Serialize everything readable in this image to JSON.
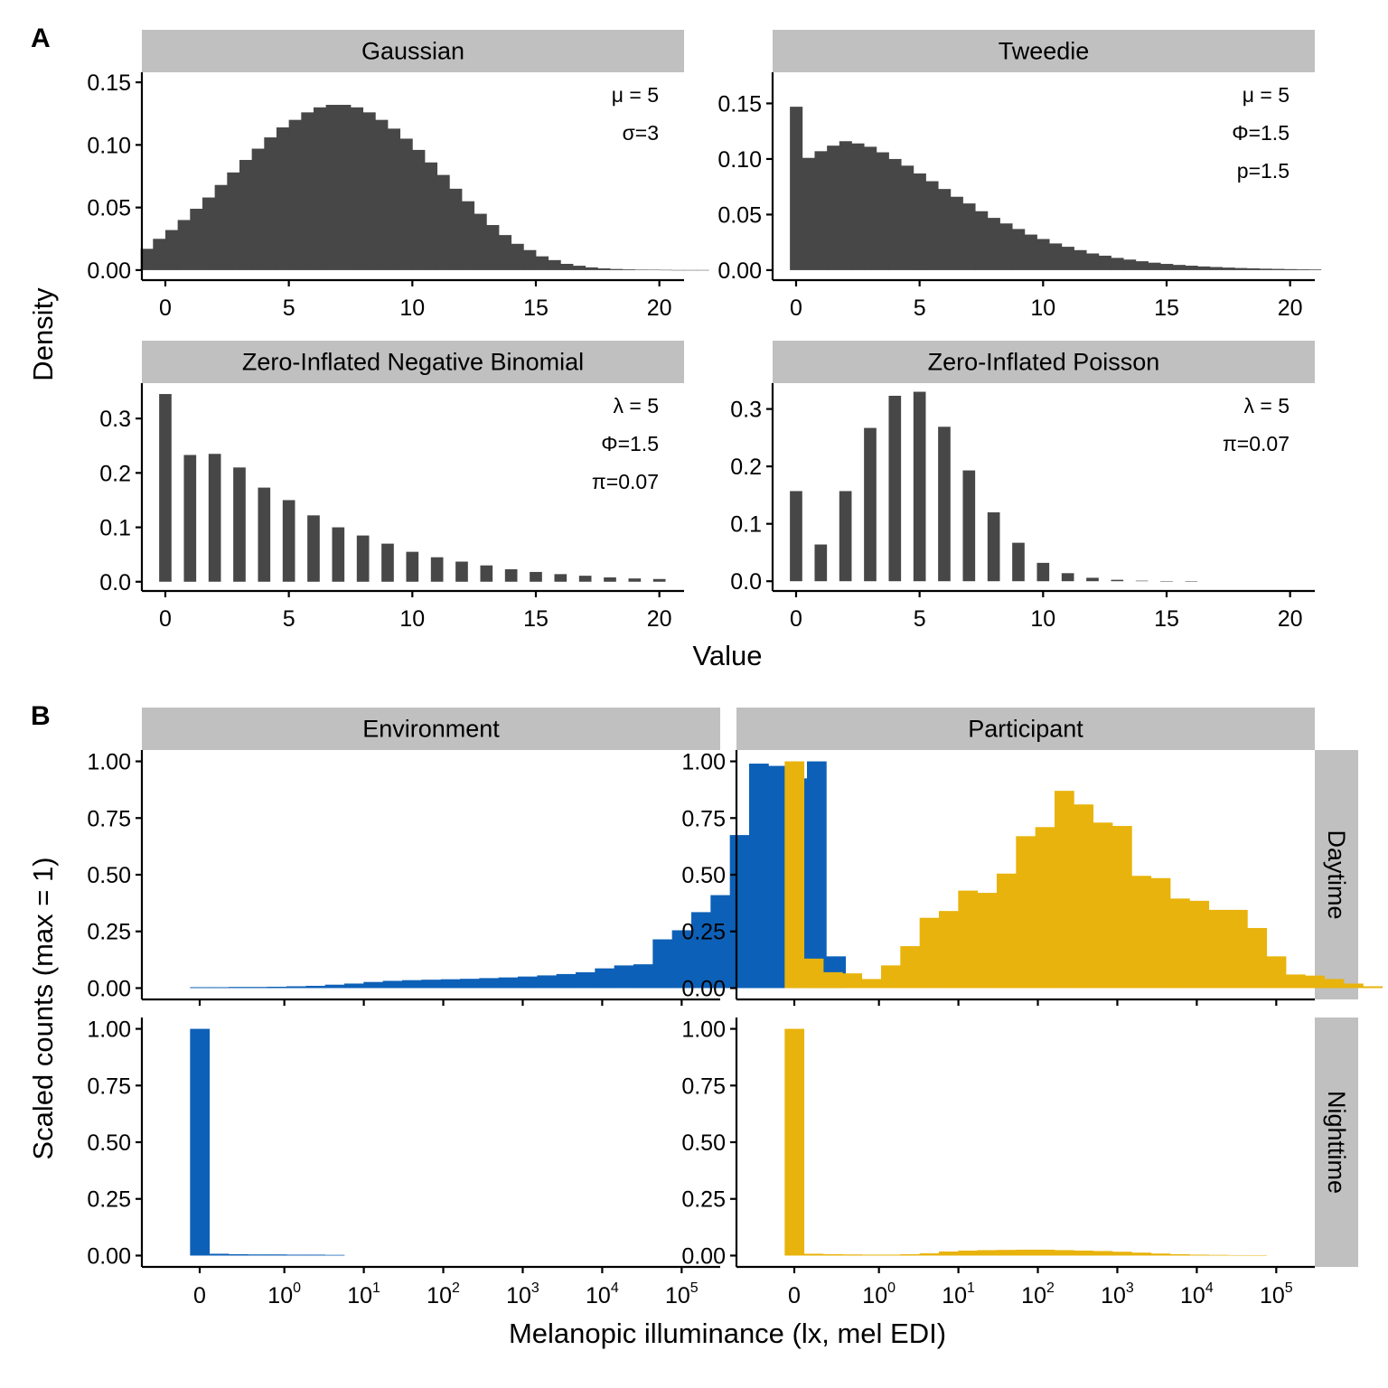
{
  "figure": {
    "panel_labels": [
      "A",
      "B"
    ]
  },
  "colors": {
    "strip_bg": "#c0c0c0",
    "bar_dark": "#474747",
    "environment": "#0d60b7",
    "participant": "#e8b30c"
  },
  "chart_data": [
    {
      "type": "bar",
      "panel": "A",
      "facet": "Gaussian",
      "annotations": [
        "μ = 5",
        "σ=3"
      ],
      "xlim": [
        -0.95,
        21
      ],
      "ylim": [
        -0.008,
        0.158
      ],
      "xticks": [
        0,
        5,
        10,
        15,
        20
      ],
      "yticks": [
        0,
        0.05,
        0.1,
        0.15
      ],
      "ytick_labels": [
        "0.00",
        "0.05",
        "0.10",
        "0.15"
      ],
      "bin_start": -1,
      "bin_width": 0.5,
      "values": [
        0.017,
        0.025,
        0.032,
        0.04,
        0.049,
        0.058,
        0.068,
        0.078,
        0.088,
        0.097,
        0.106,
        0.114,
        0.12,
        0.126,
        0.13,
        0.132,
        0.132,
        0.13,
        0.126,
        0.12,
        0.113,
        0.105,
        0.096,
        0.086,
        0.076,
        0.065,
        0.055,
        0.045,
        0.036,
        0.028,
        0.021,
        0.016,
        0.011,
        0.008,
        0.005,
        0.0035,
        0.0022,
        0.0014,
        0.0009,
        0.0006,
        0.0004,
        0.0003,
        0.0002,
        0.0001,
        0.0001,
        0.0001
      ]
    },
    {
      "type": "bar",
      "panel": "A",
      "facet": "Tweedie",
      "annotations": [
        "μ = 5",
        "Φ=1.5",
        "p=1.5"
      ],
      "xlim": [
        -0.95,
        21
      ],
      "ylim": [
        -0.009,
        0.178
      ],
      "xticks": [
        0,
        5,
        10,
        15,
        20
      ],
      "yticks": [
        0,
        0.05,
        0.1,
        0.15
      ],
      "ytick_labels": [
        "0.00",
        "0.05",
        "0.10",
        "0.15"
      ],
      "bin_start": -0.25,
      "bin_width": 0.5,
      "values": [
        0.147,
        0.101,
        0.107,
        0.112,
        0.116,
        0.114,
        0.111,
        0.106,
        0.1,
        0.094,
        0.087,
        0.08,
        0.073,
        0.066,
        0.06,
        0.053,
        0.047,
        0.042,
        0.037,
        0.032,
        0.028,
        0.024,
        0.021,
        0.018,
        0.015,
        0.013,
        0.011,
        0.0095,
        0.008,
        0.0067,
        0.0056,
        0.0047,
        0.004,
        0.0033,
        0.0028,
        0.0023,
        0.0019,
        0.0016,
        0.0013,
        0.0011,
        0.0009,
        0.0007,
        0.0006
      ]
    },
    {
      "type": "bar",
      "panel": "A",
      "facet": "Zero-Inflated Negative Binomial",
      "annotations": [
        "λ = 5",
        "Φ=1.5",
        "π=0.07"
      ],
      "xlim": [
        -0.95,
        21
      ],
      "ylim": [
        -0.017,
        0.365
      ],
      "xticks": [
        0,
        5,
        10,
        15,
        20
      ],
      "yticks": [
        0,
        0.1,
        0.2,
        0.3
      ],
      "ytick_labels": [
        "0.0",
        "0.1",
        "0.2",
        "0.3"
      ],
      "x": [
        0,
        1,
        2,
        3,
        4,
        5,
        6,
        7,
        8,
        9,
        10,
        11,
        12,
        13,
        14,
        15,
        16,
        17,
        18,
        19,
        20
      ],
      "bar_width": 0.5,
      "values": [
        0.345,
        0.233,
        0.235,
        0.21,
        0.173,
        0.15,
        0.122,
        0.1,
        0.085,
        0.07,
        0.055,
        0.045,
        0.037,
        0.03,
        0.023,
        0.018,
        0.014,
        0.011,
        0.008,
        0.006,
        0.005
      ]
    },
    {
      "type": "bar",
      "panel": "A",
      "facet": "Zero-Inflated Poisson",
      "annotations": [
        "λ = 5",
        "π=0.07"
      ],
      "xlim": [
        -0.95,
        21
      ],
      "ylim": [
        -0.017,
        0.345
      ],
      "xticks": [
        0,
        5,
        10,
        15,
        20
      ],
      "yticks": [
        0,
        0.1,
        0.2,
        0.3
      ],
      "ytick_labels": [
        "0.0",
        "0.1",
        "0.2",
        "0.3"
      ],
      "x": [
        0,
        1,
        2,
        3,
        4,
        5,
        6,
        7,
        8,
        9,
        10,
        11,
        12,
        13,
        14,
        15,
        16
      ],
      "bar_width": 0.5,
      "values": [
        0.157,
        0.064,
        0.157,
        0.267,
        0.323,
        0.33,
        0.269,
        0.193,
        0.12,
        0.067,
        0.032,
        0.014,
        0.006,
        0.0025,
        0.0009,
        0.0003,
        0.0001
      ]
    },
    {
      "type": "bar",
      "panel": "B",
      "facet": "Environment",
      "row": "Daytime",
      "color_key": "environment",
      "xlim": [
        -0.6,
        5.4
      ],
      "ylim": [
        -0.05,
        1.05
      ],
      "yticks": [
        0,
        0.25,
        0.5,
        0.75,
        1
      ],
      "ytick_labels": [
        "0.00",
        "0.25",
        "0.50",
        "0.75",
        "1.00"
      ],
      "bin_start": -0.1,
      "bin_width": 0.2,
      "values": [
        0.004,
        0.004,
        0.005,
        0.005,
        0.006,
        0.008,
        0.01,
        0.015,
        0.02,
        0.027,
        0.032,
        0.035,
        0.037,
        0.039,
        0.041,
        0.044,
        0.047,
        0.051,
        0.056,
        0.062,
        0.07,
        0.087,
        0.1,
        0.105,
        0.215,
        0.255,
        0.335,
        0.41,
        0.675,
        0.99,
        0.98,
        0.925,
        1.0,
        0.14
      ]
    },
    {
      "type": "bar",
      "panel": "B",
      "facet": "Participant",
      "row": "Daytime",
      "color_key": "participant",
      "xlim": [
        -0.6,
        5.4
      ],
      "ylim": [
        -0.05,
        1.05
      ],
      "yticks": [
        0,
        0.25,
        0.5,
        0.75,
        1
      ],
      "ytick_labels": [
        "0.00",
        "0.25",
        "0.50",
        "0.75",
        "1.00"
      ],
      "bin_start": -0.1,
      "bin_width": 0.2,
      "values": [
        1.0,
        0.13,
        0.07,
        0.065,
        0.04,
        0.1,
        0.185,
        0.31,
        0.34,
        0.43,
        0.42,
        0.505,
        0.67,
        0.71,
        0.87,
        0.81,
        0.73,
        0.715,
        0.495,
        0.485,
        0.395,
        0.385,
        0.345,
        0.345,
        0.265,
        0.14,
        0.06,
        0.055,
        0.04,
        0.02,
        0.008
      ]
    },
    {
      "type": "bar",
      "panel": "B",
      "facet": "Environment",
      "row": "Nighttime",
      "color_key": "environment",
      "xlim": [
        -0.6,
        5.4
      ],
      "ylim": [
        -0.05,
        1.05
      ],
      "xtick_labels": [
        "0",
        "10",
        "10",
        "10",
        "10",
        "10",
        "10"
      ],
      "xtick_exponents": [
        "",
        "0",
        "1",
        "2",
        "3",
        "4",
        "5"
      ],
      "yticks": [
        0,
        0.25,
        0.5,
        0.75,
        1
      ],
      "ytick_labels": [
        "0.00",
        "0.25",
        "0.50",
        "0.75",
        "1.00"
      ],
      "bin_start": -0.1,
      "bin_width": 0.2,
      "values": [
        1.0,
        0.008,
        0.006,
        0.005,
        0.005,
        0.004,
        0.004,
        0.003
      ]
    },
    {
      "type": "bar",
      "panel": "B",
      "facet": "Participant",
      "row": "Nighttime",
      "color_key": "participant",
      "xlim": [
        -0.6,
        5.4
      ],
      "ylim": [
        -0.05,
        1.05
      ],
      "xtick_labels": [
        "0",
        "10",
        "10",
        "10",
        "10",
        "10",
        "10"
      ],
      "xtick_exponents": [
        "",
        "0",
        "1",
        "2",
        "3",
        "4",
        "5"
      ],
      "yticks": [
        0,
        0.25,
        0.5,
        0.75,
        1
      ],
      "ytick_labels": [
        "0.00",
        "0.25",
        "0.50",
        "0.75",
        "1.00"
      ],
      "bin_start": -0.1,
      "bin_width": 0.2,
      "values": [
        1.0,
        0.008,
        0.006,
        0.005,
        0.004,
        0.004,
        0.006,
        0.01,
        0.018,
        0.022,
        0.024,
        0.025,
        0.026,
        0.026,
        0.024,
        0.022,
        0.02,
        0.017,
        0.013,
        0.009,
        0.006,
        0.004,
        0.003,
        0.002,
        0.001
      ]
    }
  ],
  "axes": {
    "a_ylabel": "Density",
    "a_xlabel": "Value",
    "b_ylabel": "Scaled counts (max = 1)",
    "b_xlabel": "Melanopic illuminance (lx, mel EDI)"
  }
}
